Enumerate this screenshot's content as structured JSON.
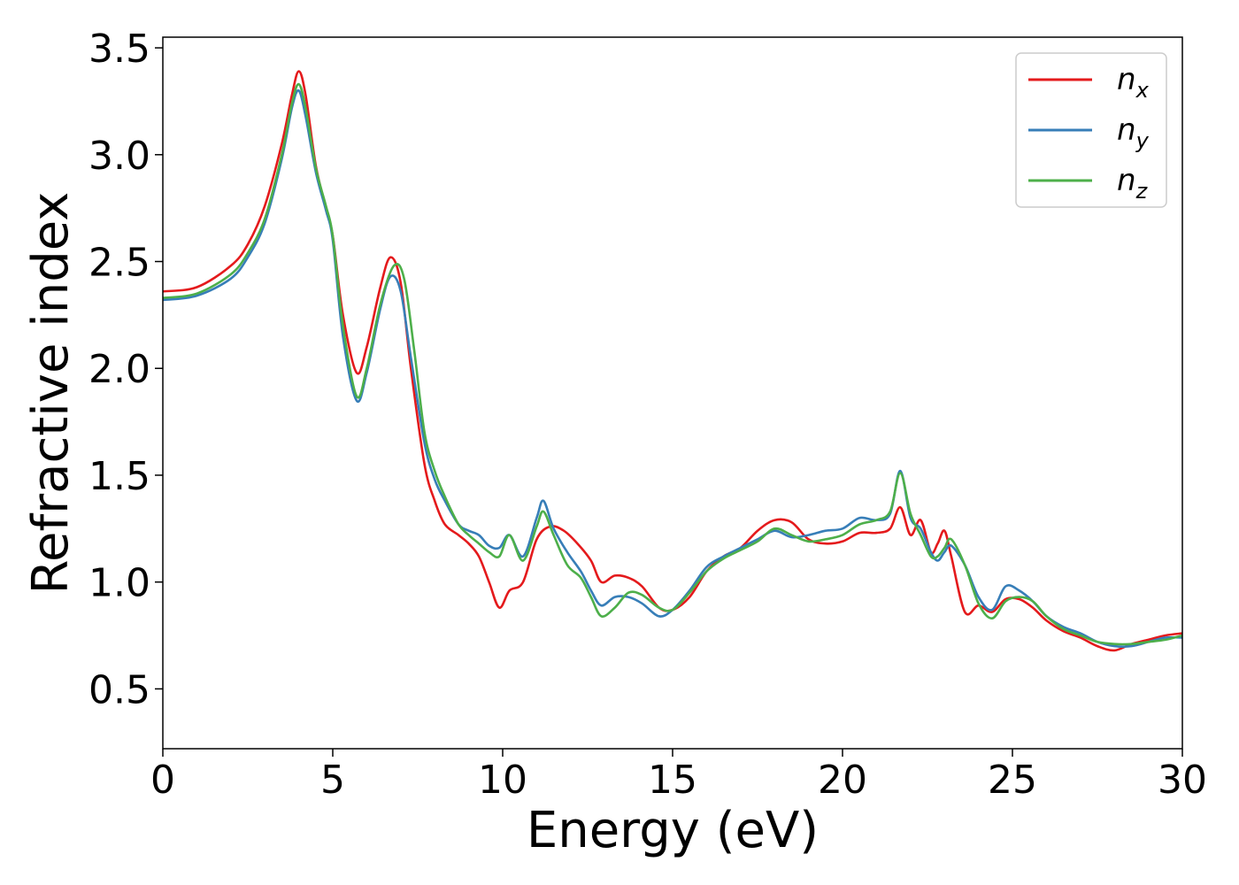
{
  "chart_data": {
    "type": "line",
    "title": "",
    "xlabel": "Energy (eV)",
    "ylabel": "Refractive index",
    "xlim": [
      0,
      30
    ],
    "ylim": [
      0.22,
      3.55
    ],
    "xticks": [
      0,
      5,
      10,
      15,
      20,
      25,
      30
    ],
    "xtick_labels": [
      "0",
      "5",
      "10",
      "15",
      "20",
      "25",
      "30"
    ],
    "yticks": [
      0.5,
      1.0,
      1.5,
      2.0,
      2.5,
      3.0,
      3.5
    ],
    "ytick_labels": [
      "0.5",
      "1.0",
      "1.5",
      "2.0",
      "2.5",
      "3.0",
      "3.5"
    ],
    "grid": false,
    "legend_position": "top-right",
    "series": [
      {
        "name": "n",
        "subscript": "x",
        "color": "#e41a1c",
        "x": [
          0,
          1,
          2,
          2.5,
          3,
          3.5,
          3.8,
          4.0,
          4.2,
          4.5,
          4.8,
          5.0,
          5.3,
          5.7,
          6.0,
          6.4,
          6.7,
          7.0,
          7.3,
          7.7,
          8.0,
          8.3,
          8.7,
          9.0,
          9.3,
          9.6,
          9.9,
          10.2,
          10.6,
          11.0,
          11.4,
          11.8,
          12.2,
          12.6,
          12.9,
          13.3,
          13.7,
          14.1,
          14.6,
          15.0,
          15.5,
          16.0,
          16.5,
          17.0,
          17.5,
          18.0,
          18.5,
          19.0,
          19.5,
          20.0,
          20.5,
          21.0,
          21.4,
          21.7,
          22.0,
          22.3,
          22.6,
          22.8,
          23.0,
          23.2,
          23.6,
          24.0,
          24.4,
          24.8,
          25.2,
          25.6,
          26.0,
          26.5,
          27.0,
          27.5,
          28.0,
          28.5,
          29.0,
          29.5,
          30.0
        ],
        "y": [
          2.36,
          2.38,
          2.48,
          2.58,
          2.76,
          3.05,
          3.28,
          3.39,
          3.28,
          2.95,
          2.75,
          2.62,
          2.25,
          1.98,
          2.1,
          2.38,
          2.52,
          2.4,
          2.0,
          1.55,
          1.38,
          1.27,
          1.22,
          1.18,
          1.12,
          1.0,
          0.88,
          0.96,
          1.0,
          1.2,
          1.26,
          1.24,
          1.18,
          1.1,
          1.0,
          1.03,
          1.02,
          0.98,
          0.88,
          0.87,
          0.93,
          1.05,
          1.12,
          1.16,
          1.24,
          1.29,
          1.28,
          1.2,
          1.18,
          1.19,
          1.23,
          1.23,
          1.25,
          1.35,
          1.22,
          1.29,
          1.14,
          1.18,
          1.24,
          1.12,
          0.86,
          0.89,
          0.86,
          0.92,
          0.92,
          0.88,
          0.82,
          0.77,
          0.74,
          0.7,
          0.68,
          0.71,
          0.73,
          0.75,
          0.76
        ]
      },
      {
        "name": "n",
        "subscript": "y",
        "color": "#377eb8",
        "x": [
          0,
          1,
          2,
          2.5,
          3,
          3.5,
          3.8,
          4.0,
          4.2,
          4.5,
          4.8,
          5.0,
          5.3,
          5.7,
          6.0,
          6.4,
          6.7,
          7.0,
          7.3,
          7.7,
          8.0,
          8.3,
          8.7,
          9.0,
          9.3,
          9.6,
          9.9,
          10.2,
          10.6,
          11.0,
          11.2,
          11.5,
          11.9,
          12.3,
          12.6,
          12.9,
          13.3,
          13.7,
          14.1,
          14.6,
          15.0,
          15.5,
          16.0,
          16.5,
          17.0,
          17.5,
          18.0,
          18.5,
          19.0,
          19.5,
          20.0,
          20.5,
          21.0,
          21.4,
          21.7,
          22.0,
          22.3,
          22.6,
          22.8,
          23.0,
          23.2,
          23.6,
          24.0,
          24.4,
          24.8,
          25.2,
          25.6,
          26.0,
          26.5,
          27.0,
          27.5,
          28.0,
          28.5,
          29.0,
          29.5,
          30.0
        ],
        "y": [
          2.32,
          2.34,
          2.42,
          2.52,
          2.68,
          2.98,
          3.22,
          3.3,
          3.18,
          2.92,
          2.74,
          2.6,
          2.15,
          1.85,
          1.98,
          2.28,
          2.43,
          2.36,
          2.05,
          1.65,
          1.48,
          1.38,
          1.27,
          1.24,
          1.22,
          1.17,
          1.16,
          1.22,
          1.12,
          1.3,
          1.38,
          1.25,
          1.14,
          1.05,
          0.96,
          0.89,
          0.93,
          0.93,
          0.9,
          0.84,
          0.87,
          0.96,
          1.07,
          1.12,
          1.16,
          1.2,
          1.24,
          1.21,
          1.22,
          1.24,
          1.25,
          1.3,
          1.29,
          1.32,
          1.52,
          1.3,
          1.25,
          1.14,
          1.1,
          1.14,
          1.17,
          1.08,
          0.93,
          0.87,
          0.98,
          0.96,
          0.91,
          0.84,
          0.79,
          0.76,
          0.72,
          0.7,
          0.7,
          0.72,
          0.74,
          0.74
        ]
      },
      {
        "name": "n",
        "subscript": "z",
        "color": "#4daf4a",
        "x": [
          0,
          1,
          2,
          2.5,
          3,
          3.5,
          3.8,
          4.0,
          4.2,
          4.5,
          4.8,
          5.0,
          5.3,
          5.7,
          6.0,
          6.4,
          6.8,
          7.1,
          7.4,
          7.7,
          8.0,
          8.3,
          8.7,
          9.0,
          9.3,
          9.6,
          9.9,
          10.2,
          10.6,
          11.0,
          11.2,
          11.5,
          11.9,
          12.3,
          12.6,
          12.9,
          13.3,
          13.7,
          14.1,
          14.6,
          15.0,
          15.5,
          16.0,
          16.5,
          17.0,
          17.5,
          18.0,
          18.5,
          19.0,
          19.5,
          20.0,
          20.5,
          21.0,
          21.4,
          21.7,
          22.0,
          22.3,
          22.6,
          22.8,
          23.0,
          23.2,
          23.6,
          24.0,
          24.4,
          24.8,
          25.2,
          25.6,
          26.0,
          26.5,
          27.0,
          27.5,
          28.0,
          28.5,
          29.0,
          29.5,
          30.0
        ],
        "y": [
          2.33,
          2.35,
          2.44,
          2.54,
          2.7,
          3.0,
          3.24,
          3.33,
          3.22,
          2.94,
          2.76,
          2.62,
          2.2,
          1.87,
          2.0,
          2.3,
          2.48,
          2.42,
          2.08,
          1.7,
          1.52,
          1.4,
          1.27,
          1.22,
          1.18,
          1.14,
          1.12,
          1.22,
          1.1,
          1.26,
          1.33,
          1.22,
          1.08,
          1.02,
          0.93,
          0.84,
          0.88,
          0.95,
          0.94,
          0.88,
          0.87,
          0.95,
          1.05,
          1.11,
          1.15,
          1.19,
          1.25,
          1.22,
          1.19,
          1.2,
          1.22,
          1.27,
          1.29,
          1.33,
          1.51,
          1.32,
          1.22,
          1.12,
          1.12,
          1.16,
          1.2,
          1.08,
          0.9,
          0.83,
          0.91,
          0.93,
          0.91,
          0.84,
          0.78,
          0.75,
          0.72,
          0.71,
          0.71,
          0.72,
          0.73,
          0.75
        ]
      }
    ]
  }
}
